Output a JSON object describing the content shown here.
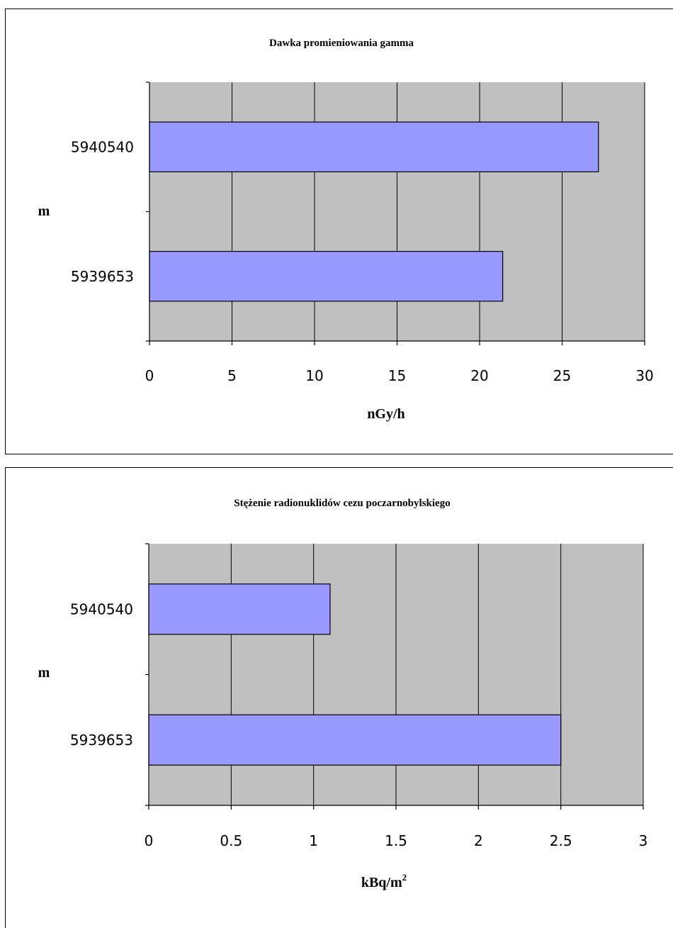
{
  "colors": {
    "plot_bg": "#C0C0C0",
    "bar_fill": "#9999FF",
    "gridline": "#000000",
    "border": "#000000"
  },
  "chart_data": [
    {
      "type": "bar",
      "orientation": "horizontal",
      "title": "Dawka promieniowania gamma",
      "xlabel": "nGy/h",
      "ylabel": "m",
      "categories": [
        "5939653",
        "5940540"
      ],
      "values": [
        21.4,
        27.2
      ],
      "xlim": [
        0,
        30
      ],
      "xticks": [
        "0",
        "5",
        "10",
        "15",
        "20",
        "25",
        "30"
      ],
      "grid": "vertical"
    },
    {
      "type": "bar",
      "orientation": "horizontal",
      "title": "Stężenie radionuklidów cezu poczarnobylskiego",
      "xlabel": "kBq/m",
      "xlabel_superscript": "2",
      "ylabel": "m",
      "categories": [
        "5939653",
        "5940540"
      ],
      "values": [
        2.5,
        1.1
      ],
      "xlim": [
        0,
        3
      ],
      "xticks": [
        "0",
        "0.5",
        "1",
        "1.5",
        "2",
        "2.5",
        "3"
      ],
      "grid": "vertical"
    }
  ]
}
